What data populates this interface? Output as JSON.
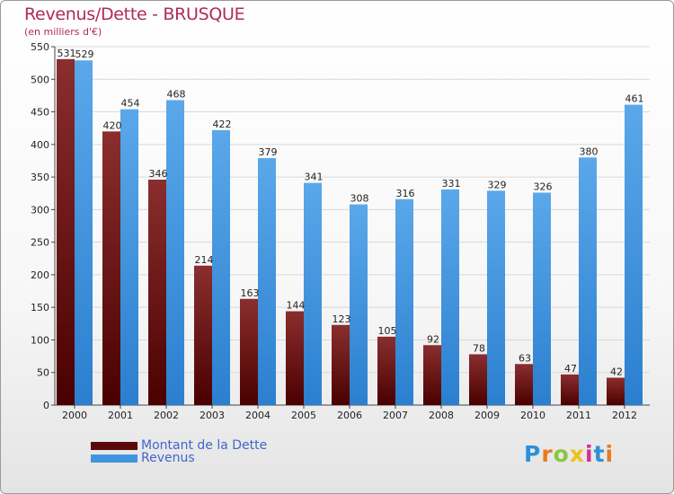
{
  "header": {
    "title": "Revenus/Dette - BRUSQUE",
    "subtitle": "(en milliers d'€)"
  },
  "legend": {
    "items": [
      "Montant de la Dette",
      "Revenus"
    ]
  },
  "logo": {
    "letters": [
      "P",
      "r",
      "o",
      "x",
      "i",
      "t",
      "i"
    ],
    "colors": [
      "#2f8fd8",
      "#e87b1e",
      "#8cc63f",
      "#e8c21e",
      "#d62f8c",
      "#2f8fd8",
      "#e87b1e"
    ]
  },
  "colors": {
    "dette_top": "#8a2e2e",
    "dette_bottom": "#4a0000",
    "revenus_top": "#5aa8ea",
    "revenus_bottom": "#2b7fcf",
    "grid": "#d8d8d8",
    "title": "#b02a5a"
  },
  "chart_data": {
    "type": "bar",
    "title": "Revenus/Dette - BRUSQUE",
    "subtitle": "(en milliers d'€)",
    "categories": [
      "2000",
      "2001",
      "2002",
      "2003",
      "2004",
      "2005",
      "2006",
      "2007",
      "2008",
      "2009",
      "2010",
      "2011",
      "2012"
    ],
    "series": [
      {
        "name": "Montant de la Dette",
        "values": [
          531,
          420,
          346,
          214,
          163,
          144,
          123,
          105,
          92,
          78,
          63,
          47,
          42
        ]
      },
      {
        "name": "Revenus",
        "values": [
          529,
          454,
          468,
          422,
          379,
          341,
          308,
          316,
          331,
          329,
          326,
          380,
          461
        ]
      }
    ],
    "ylim": [
      0,
      550
    ],
    "yticks": [
      0,
      50,
      100,
      150,
      200,
      250,
      300,
      350,
      400,
      450,
      500,
      550
    ],
    "grid": true,
    "legend_position": "bottom-left"
  }
}
